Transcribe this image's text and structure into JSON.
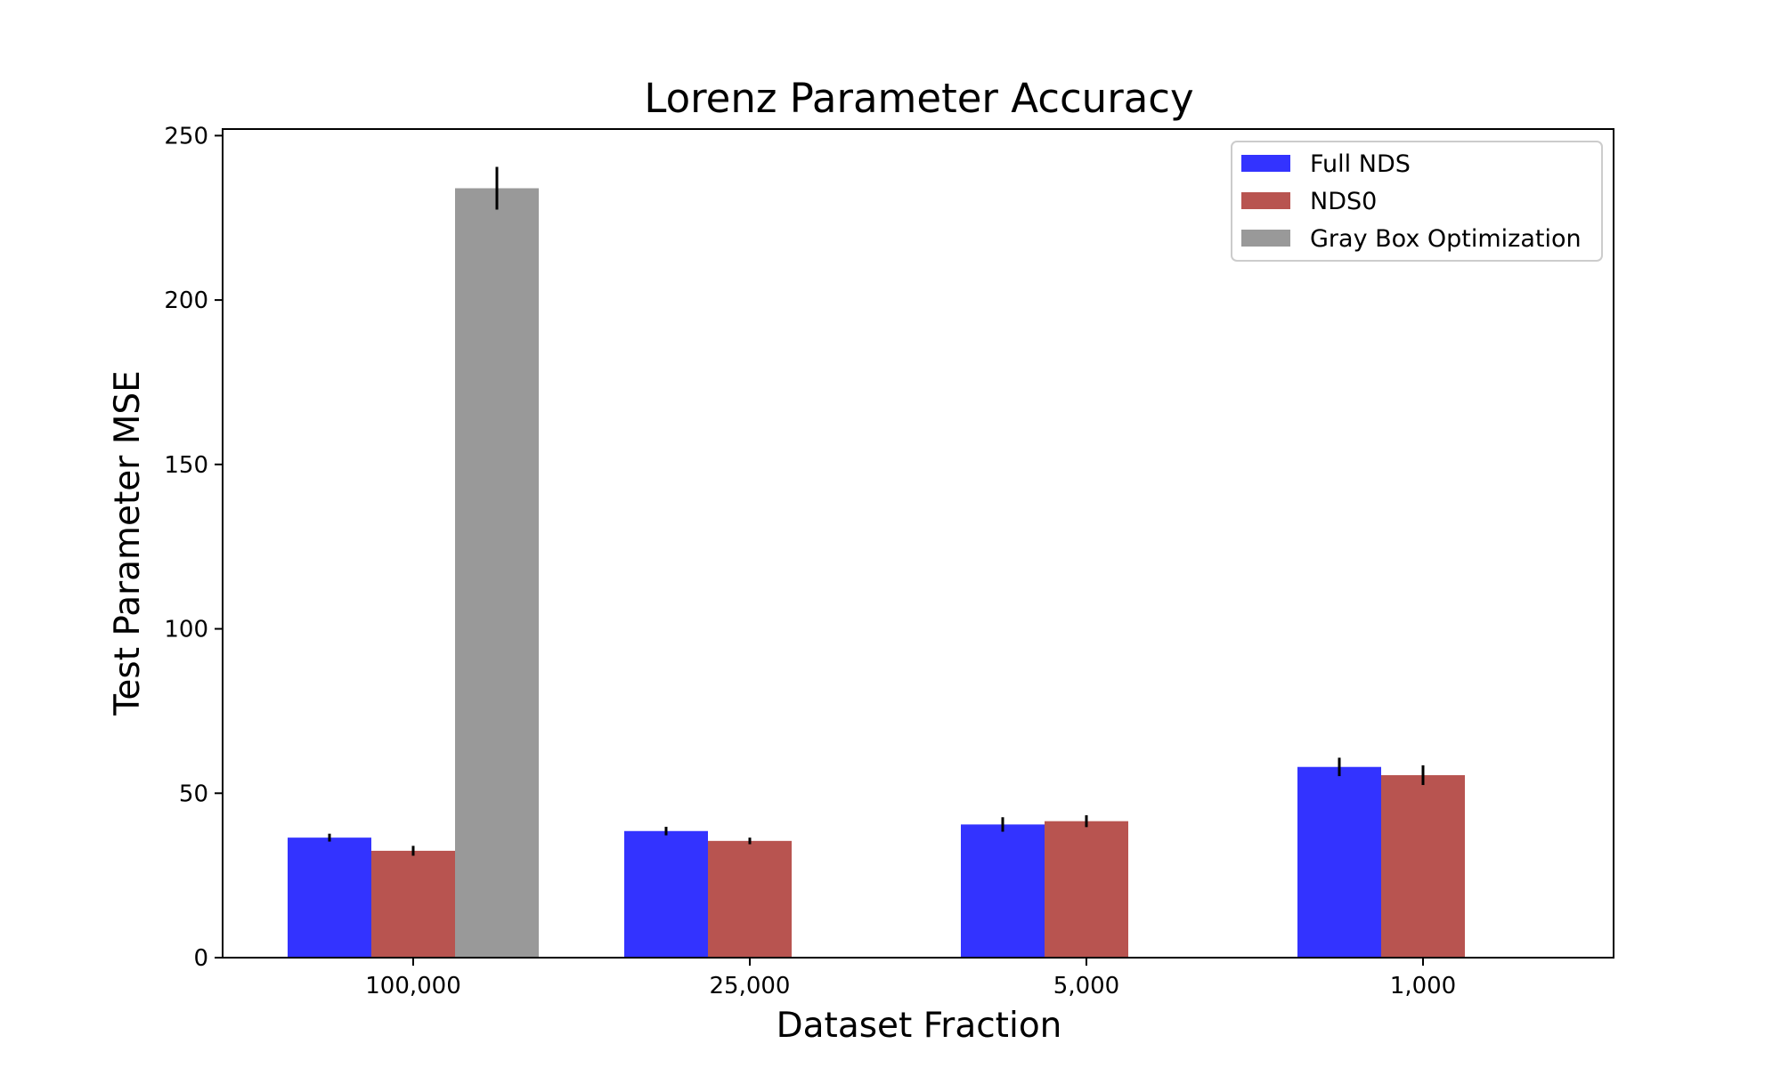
{
  "chart_data": {
    "type": "bar",
    "title": "Lorenz Parameter Accuracy",
    "xlabel": "Dataset Fraction",
    "ylabel": "Test Parameter MSE",
    "categories": [
      "100,000",
      "25,000",
      "5,000",
      "1,000"
    ],
    "ylim": [
      0,
      252
    ],
    "yticks": [
      0,
      50,
      100,
      150,
      200,
      250
    ],
    "legend_position": "top-right",
    "grid": false,
    "series": [
      {
        "name": "Full NDS",
        "color": "#3333ff",
        "values": [
          36.5,
          38.5,
          40.5,
          58
        ],
        "errors": [
          1.2,
          1.3,
          2.2,
          2.8
        ]
      },
      {
        "name": "NDS0",
        "color": "#b85450",
        "values": [
          32.5,
          35.5,
          41.5,
          55.5
        ],
        "errors": [
          1.5,
          1.0,
          1.8,
          3.0
        ]
      },
      {
        "name": "Gray Box Optimization",
        "color": "#999999",
        "values": [
          234,
          null,
          null,
          null
        ],
        "errors": [
          6.5,
          null,
          null,
          null
        ]
      }
    ]
  }
}
